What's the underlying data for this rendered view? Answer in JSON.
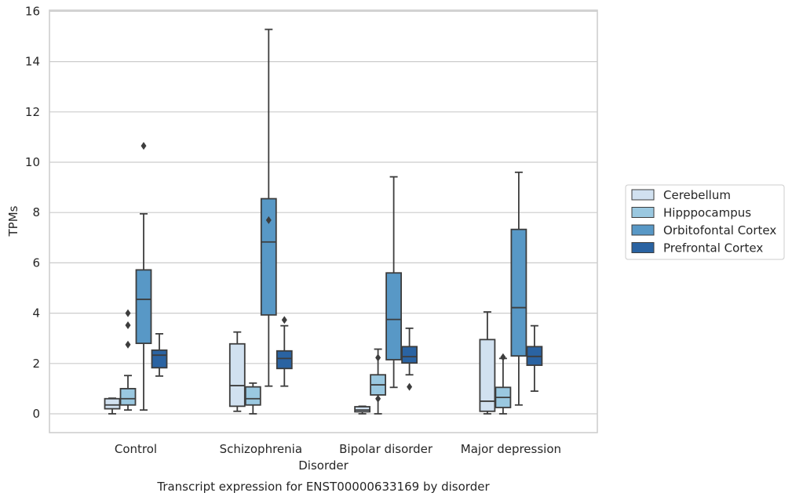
{
  "caption": "Transcript expression for ENST00000633169 by disorder",
  "chart_data": {
    "type": "box",
    "title": "",
    "xlabel": "Disorder",
    "ylabel": "TPMs",
    "ylim": [
      -0.7,
      16.1
    ],
    "yticks": [
      0,
      2,
      4,
      6,
      8,
      10,
      12,
      14,
      16
    ],
    "grid": "horizontal",
    "legend_position": "right",
    "categories": [
      "Control",
      "Schizophrenia",
      "Bipolar disorder",
      "Major depression"
    ],
    "series": [
      {
        "name": "Cerebellum",
        "color": "#d1e1f0",
        "boxes": [
          {
            "whislo": 0.0,
            "q1": 0.2,
            "med": 0.35,
            "q3": 0.6,
            "whishi": 0.62,
            "fliers": []
          },
          {
            "whislo": 0.1,
            "q1": 0.3,
            "med": 1.12,
            "q3": 2.78,
            "whishi": 3.25,
            "fliers": []
          },
          {
            "whislo": 0.0,
            "q1": 0.08,
            "med": 0.15,
            "q3": 0.28,
            "whishi": 0.3,
            "fliers": []
          },
          {
            "whislo": 0.0,
            "q1": 0.1,
            "med": 0.5,
            "q3": 2.95,
            "whishi": 4.05,
            "fliers": []
          }
        ]
      },
      {
        "name": "Hipppocampus",
        "color": "#9ac8e0",
        "boxes": [
          {
            "whislo": 0.15,
            "q1": 0.35,
            "med": 0.6,
            "q3": 1.0,
            "whishi": 1.52,
            "fliers": [
              2.75,
              3.52,
              4.0
            ]
          },
          {
            "whislo": 0.0,
            "q1": 0.35,
            "med": 0.6,
            "q3": 1.07,
            "whishi": 1.22,
            "fliers": []
          },
          {
            "whislo": 0.0,
            "q1": 0.75,
            "med": 1.15,
            "q3": 1.55,
            "whishi": 2.57,
            "fliers": [
              0.6,
              2.23
            ]
          },
          {
            "whislo": 0.0,
            "q1": 0.25,
            "med": 0.65,
            "q3": 1.05,
            "whishi": 2.2,
            "fliers": [
              2.25
            ]
          }
        ]
      },
      {
        "name": "Orbitofontal Cortex",
        "color": "#5898c6",
        "boxes": [
          {
            "whislo": 0.15,
            "q1": 2.8,
            "med": 4.55,
            "q3": 5.72,
            "whishi": 7.95,
            "fliers": [
              10.65
            ]
          },
          {
            "whislo": 1.1,
            "q1": 3.93,
            "med": 6.83,
            "q3": 8.55,
            "whishi": 15.28,
            "fliers": [
              7.7
            ]
          },
          {
            "whislo": 1.05,
            "q1": 2.15,
            "med": 3.75,
            "q3": 5.6,
            "whishi": 9.42,
            "fliers": []
          },
          {
            "whislo": 0.35,
            "q1": 2.3,
            "med": 4.22,
            "q3": 7.33,
            "whishi": 9.6,
            "fliers": []
          }
        ]
      },
      {
        "name": "Prefrontal Cortex",
        "color": "#2a63a2",
        "boxes": [
          {
            "whislo": 1.5,
            "q1": 1.83,
            "med": 2.33,
            "q3": 2.53,
            "whishi": 3.18,
            "fliers": []
          },
          {
            "whislo": 1.1,
            "q1": 1.8,
            "med": 2.2,
            "q3": 2.5,
            "whishi": 3.5,
            "fliers": [
              3.73
            ]
          },
          {
            "whislo": 1.55,
            "q1": 2.02,
            "med": 2.27,
            "q3": 2.67,
            "whishi": 3.4,
            "fliers": [
              1.07
            ]
          },
          {
            "whislo": 0.9,
            "q1": 1.93,
            "med": 2.28,
            "q3": 2.67,
            "whishi": 3.5,
            "fliers": []
          }
        ]
      }
    ]
  }
}
